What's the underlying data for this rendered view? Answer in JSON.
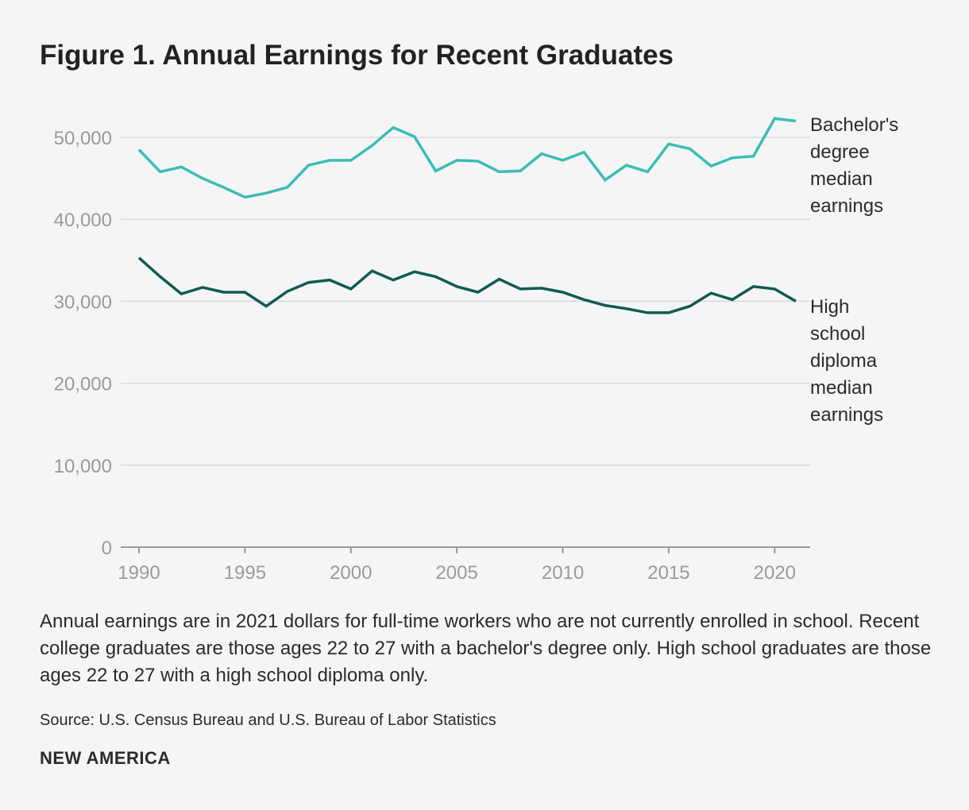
{
  "title": "Figure 1. Annual Earnings for Recent Graduates",
  "caption": "Annual earnings are in 2021 dollars for full-time workers who are not currently enrolled in school. Recent college graduates are those ages 22 to 27 with a bachelor's degree only. High school graduates are those ages 22 to 27 with a high school diploma only.",
  "source": "Source: U.S. Census Bureau and U.S. Bureau of Labor Statistics",
  "brand": "NEW AMERICA",
  "colors": {
    "bachelors": "#3bbdb5",
    "highschool": "#0f5b52",
    "grid": "#d9d9d9",
    "axis": "#9a9a9a",
    "tick_text": "#9a9a9a",
    "label_text": "#2b2b2b"
  },
  "chart_data": {
    "type": "line",
    "title": "Figure 1. Annual Earnings for Recent Graduates",
    "xlabel": "",
    "ylabel": "",
    "xlim": [
      1990,
      2021
    ],
    "ylim": [
      0,
      50000
    ],
    "y_ticks": [
      0,
      10000,
      20000,
      30000,
      40000,
      50000
    ],
    "y_tick_labels": [
      "0",
      "10,000",
      "20,000",
      "30,000",
      "40,000",
      "50,000"
    ],
    "x_ticks": [
      1990,
      1995,
      2000,
      2005,
      2010,
      2015,
      2020
    ],
    "x_tick_labels": [
      "1990",
      "1995",
      "2000",
      "2005",
      "2010",
      "2015",
      "2020"
    ],
    "grid": true,
    "x": [
      1990,
      1991,
      1992,
      1993,
      1994,
      1995,
      1996,
      1997,
      1998,
      1999,
      2000,
      2001,
      2002,
      2003,
      2004,
      2005,
      2006,
      2007,
      2008,
      2009,
      2010,
      2011,
      2012,
      2013,
      2014,
      2015,
      2016,
      2017,
      2018,
      2019,
      2020,
      2021
    ],
    "series": [
      {
        "name": "Bachelor's degree median earnings",
        "label_lines": [
          "Bachelor's",
          "degree",
          "median",
          "earnings"
        ],
        "values": [
          48500,
          45800,
          46400,
          45000,
          43900,
          42700,
          43200,
          43900,
          46600,
          47200,
          47200,
          49000,
          51200,
          50100,
          45900,
          47200,
          47100,
          45800,
          45900,
          48000,
          47200,
          48200,
          44800,
          46600,
          45800,
          49200,
          48600,
          46500,
          47500,
          47700,
          52300,
          52000
        ]
      },
      {
        "name": "High school diploma median earnings",
        "label_lines": [
          "High",
          "school",
          "diploma",
          "median",
          "earnings"
        ],
        "values": [
          35300,
          33000,
          30900,
          31700,
          31100,
          31100,
          29400,
          31200,
          32300,
          32600,
          31500,
          33700,
          32600,
          33600,
          33000,
          31800,
          31100,
          32700,
          31500,
          31600,
          31100,
          30200,
          29500,
          29100,
          28600,
          28600,
          29400,
          31000,
          30200,
          31800,
          31500,
          30000
        ]
      }
    ]
  }
}
